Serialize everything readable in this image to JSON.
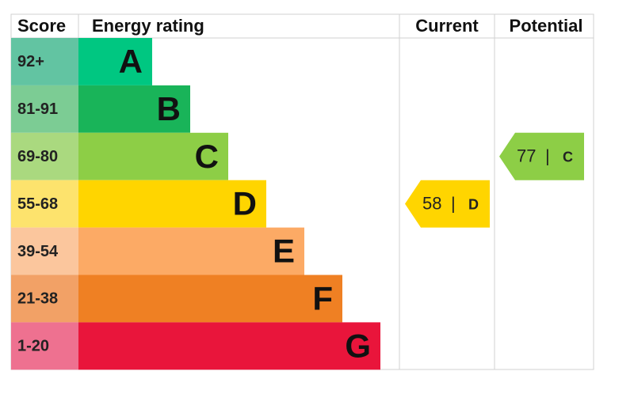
{
  "header": {
    "score": "Score",
    "rating": "Energy rating",
    "current": "Current",
    "potential": "Potential"
  },
  "bands": [
    {
      "score": "92+",
      "letter": "A",
      "color": "#00c781",
      "score_color": "#62c4a2"
    },
    {
      "score": "81-91",
      "letter": "B",
      "color": "#19b459",
      "score_color": "#7ccc94"
    },
    {
      "score": "69-80",
      "letter": "C",
      "color": "#8dce46",
      "score_color": "#aad97f"
    },
    {
      "score": "55-68",
      "letter": "D",
      "color": "#ffd500",
      "score_color": "#fde36d"
    },
    {
      "score": "39-54",
      "letter": "E",
      "color": "#fcaa65",
      "score_color": "#fbc69d"
    },
    {
      "score": "21-38",
      "letter": "F",
      "color": "#ef8023",
      "score_color": "#f2a166"
    },
    {
      "score": "1-20",
      "letter": "G",
      "color": "#e9153b",
      "score_color": "#ee7190"
    }
  ],
  "current": {
    "value": 58,
    "separator": "|",
    "letter": "D"
  },
  "potential": {
    "value": 77,
    "separator": "|",
    "letter": "C"
  }
}
